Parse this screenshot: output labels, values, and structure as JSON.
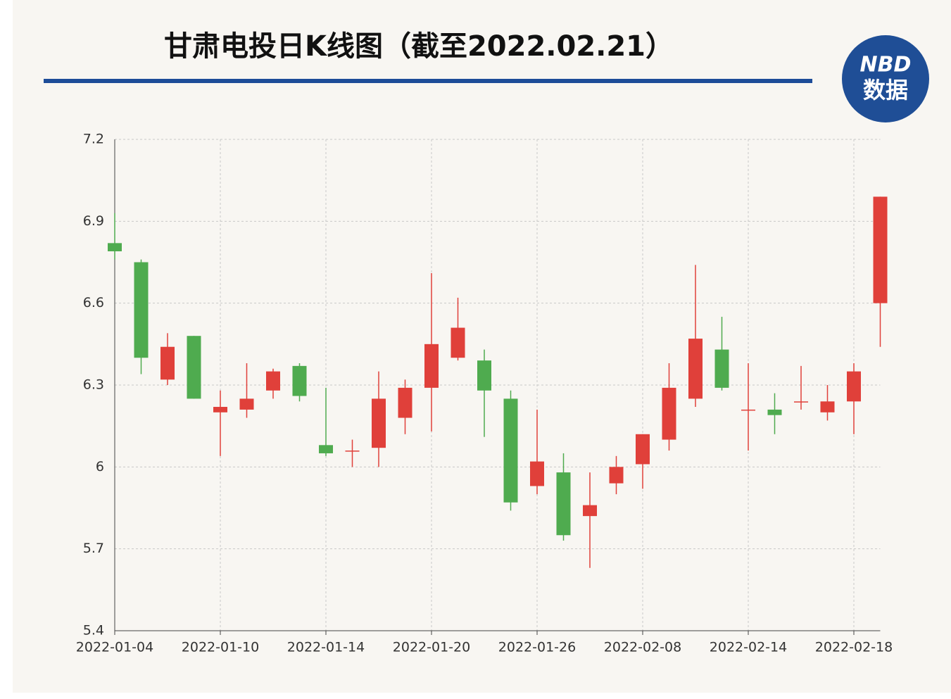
{
  "chart_data": {
    "type": "candlestick",
    "title": "甘肃电投日K线图（截至2022.02.21）",
    "categories": [
      "2022-01-04",
      null,
      null,
      null,
      "2022-01-10",
      null,
      null,
      null,
      "2022-01-14",
      null,
      null,
      null,
      "2022-01-20",
      null,
      null,
      null,
      "2022-01-26",
      null,
      null,
      null,
      "2022-02-08",
      null,
      null,
      null,
      "2022-02-14",
      null,
      null,
      null,
      "2022-02-18",
      null
    ],
    "open": [
      6.82,
      6.75,
      6.32,
      6.48,
      6.2,
      6.21,
      6.28,
      6.37,
      6.08,
      6.06,
      6.07,
      6.18,
      6.29,
      6.4,
      6.39,
      6.25,
      5.93,
      5.98,
      5.82,
      5.94,
      6.01,
      6.1,
      6.25,
      6.43,
      6.21,
      6.21,
      6.24,
      6.2,
      6.24,
      6.6
    ],
    "close": [
      6.79,
      6.4,
      6.44,
      6.25,
      6.22,
      6.25,
      6.35,
      6.26,
      6.05,
      6.06,
      6.25,
      6.29,
      6.45,
      6.51,
      6.28,
      5.87,
      6.02,
      5.75,
      5.86,
      6.0,
      6.12,
      6.29,
      6.47,
      6.29,
      6.21,
      6.19,
      6.24,
      6.24,
      6.35,
      6.99
    ],
    "high": [
      6.93,
      6.76,
      6.49,
      6.48,
      6.28,
      6.38,
      6.36,
      6.38,
      6.29,
      6.1,
      6.35,
      6.32,
      6.71,
      6.62,
      6.43,
      6.28,
      6.21,
      6.05,
      5.98,
      6.04,
      6.12,
      6.38,
      6.74,
      6.55,
      6.38,
      6.27,
      6.37,
      6.3,
      6.38,
      6.99
    ],
    "low": [
      6.76,
      6.34,
      6.3,
      6.25,
      6.04,
      6.18,
      6.25,
      6.24,
      6.04,
      6.0,
      6.0,
      6.12,
      6.13,
      6.39,
      6.11,
      5.84,
      5.9,
      5.73,
      5.63,
      5.9,
      5.92,
      6.06,
      6.22,
      6.28,
      6.06,
      6.12,
      6.21,
      6.17,
      6.12,
      6.44
    ],
    "up_color": "#e0403a",
    "down_color": "#4fab4f",
    "ylim": [
      5.4,
      7.2
    ],
    "yticks": [
      5.4,
      5.7,
      6,
      6.3,
      6.6,
      6.9,
      7.2
    ],
    "grid": true
  },
  "logo": {
    "top": "NBD",
    "bottom": "数据"
  }
}
